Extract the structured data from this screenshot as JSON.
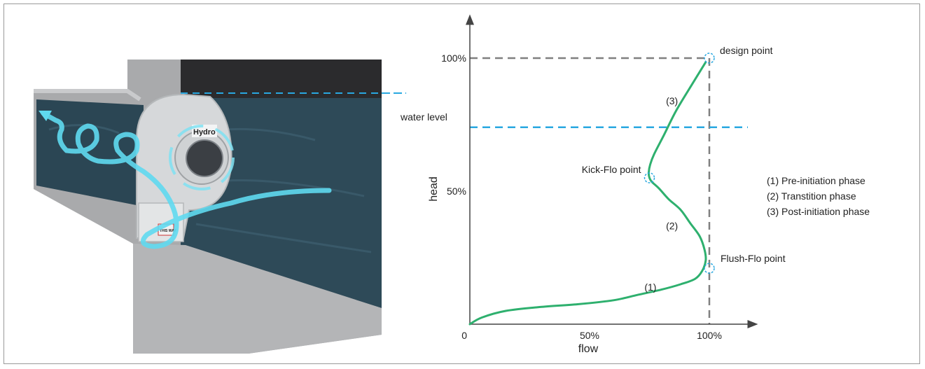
{
  "illustration": {
    "water_level_label": "water level",
    "device_brand_text": "Hydro",
    "device_plate_text": "THIS WAY",
    "colors": {
      "water": "#2e4a58",
      "concrete": "#a8a9ab",
      "flow_arrow": "#5fd9ef",
      "device": "#d6d8da"
    }
  },
  "chart_data": {
    "type": "line",
    "xlabel": "flow",
    "ylabel": "head",
    "x_ticks": [
      "0",
      "50%",
      "100%"
    ],
    "y_ticks": [
      "50%",
      "100%"
    ],
    "xlim": [
      0,
      100
    ],
    "ylim": [
      0,
      100
    ],
    "series": [
      {
        "x": [
          0,
          5,
          15,
          30,
          45,
          60,
          70,
          80,
          88,
          94,
          97,
          98.5,
          98,
          96,
          92,
          88,
          83,
          79,
          76,
          75,
          74.7,
          75.3,
          77,
          81,
          86,
          92,
          98.5
        ],
        "y": [
          0,
          2.5,
          5,
          6.5,
          7.5,
          9,
          11,
          13,
          15,
          17,
          20,
          24,
          28,
          33,
          38,
          43,
          47,
          51,
          53.5,
          55,
          57,
          60,
          64,
          71,
          80,
          89,
          98.5
        ],
        "color": "#2eb06e"
      }
    ],
    "annotations": [
      {
        "label": "design point",
        "x": 100,
        "y": 100
      },
      {
        "label": "Kick-Flo point",
        "x": 75,
        "y": 55
      },
      {
        "label": "Flush-Flo point",
        "x": 100,
        "y": 21
      }
    ],
    "phase_labels": [
      {
        "label": "(1)",
        "x": 77,
        "y": 14
      },
      {
        "label": "(2)",
        "x": 86,
        "y": 37
      },
      {
        "label": "(3)",
        "x": 86,
        "y": 84
      }
    ],
    "reference_lines": [
      {
        "kind": "horizontal",
        "y": 100,
        "style": "dashed",
        "color": "#808080"
      },
      {
        "kind": "vertical",
        "x": 100,
        "style": "dashed",
        "color": "#808080"
      },
      {
        "kind": "horizontal",
        "y": 74,
        "style": "dashed",
        "color": "#29a8e0"
      }
    ],
    "legend": {
      "placement": "right",
      "items": [
        "(1)  Pre-initiation phase",
        "(2)  Transtition phase",
        "(3)  Post-initiation phase"
      ]
    }
  }
}
